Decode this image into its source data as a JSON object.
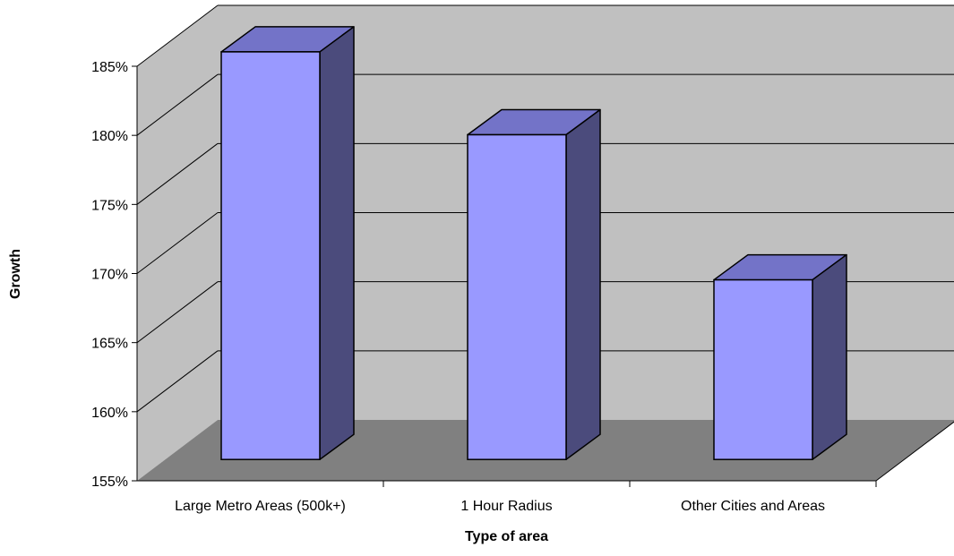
{
  "colors": {
    "back_wall": "#c0c0c0",
    "floor": "#808080",
    "bar_front": "#9999ff",
    "bar_top": "#7373c8",
    "bar_side": "#4b4b7c",
    "grid": "#000000"
  },
  "chart_data": {
    "type": "bar",
    "subtype": "3d-column",
    "title": "",
    "xlabel": "Type of area",
    "ylabel": "Growth",
    "categories": [
      "Large Metro Areas (500k+)",
      "1 Hour Radius",
      "Other Cities and Areas"
    ],
    "series": [
      {
        "values": [
          184.5,
          178.5,
          168.0
        ]
      }
    ],
    "ylim": [
      155,
      185
    ],
    "yticks": [
      "155%",
      "160%",
      "165%",
      "170%",
      "175%",
      "180%",
      "185%"
    ],
    "ytick_values": [
      155,
      160,
      165,
      170,
      175,
      180,
      185
    ],
    "grid": true,
    "legend": "none"
  }
}
